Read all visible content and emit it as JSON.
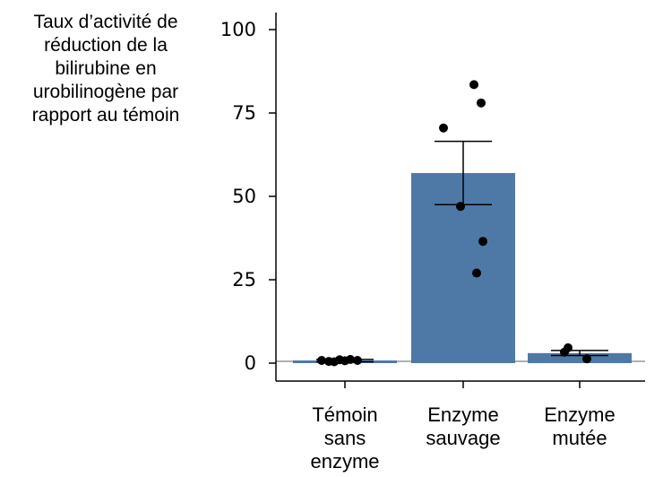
{
  "chart_data": {
    "type": "bar",
    "ylabel": "Taux d’activité de\nréduction de la\nbilirubine en\nurobilinogène par\nrapport au témoin",
    "categories": [
      [
        "Témoin",
        "sans",
        "enzyme"
      ],
      [
        "Enzyme",
        "sauvage"
      ],
      [
        "Enzyme",
        "mutée"
      ]
    ],
    "values": [
      0.8,
      57,
      3
    ],
    "error": [
      {
        "low": 0.4,
        "high": 1.1
      },
      {
        "low": 47.5,
        "high": 66.5
      },
      {
        "low": 2.3,
        "high": 3.8
      }
    ],
    "points": [
      [
        0.8,
        0.5,
        0.4,
        1.0,
        0.7,
        1.1,
        0.8
      ],
      [
        83.5,
        78,
        70.5,
        47,
        36.5,
        27
      ],
      [
        4.6,
        3.3,
        1.3
      ]
    ],
    "yticks": [
      0,
      25,
      50,
      75,
      100
    ],
    "ylim": [
      -5,
      105
    ],
    "bar_color": "#4e79a7",
    "baseline_color": "#b0b0b0"
  }
}
